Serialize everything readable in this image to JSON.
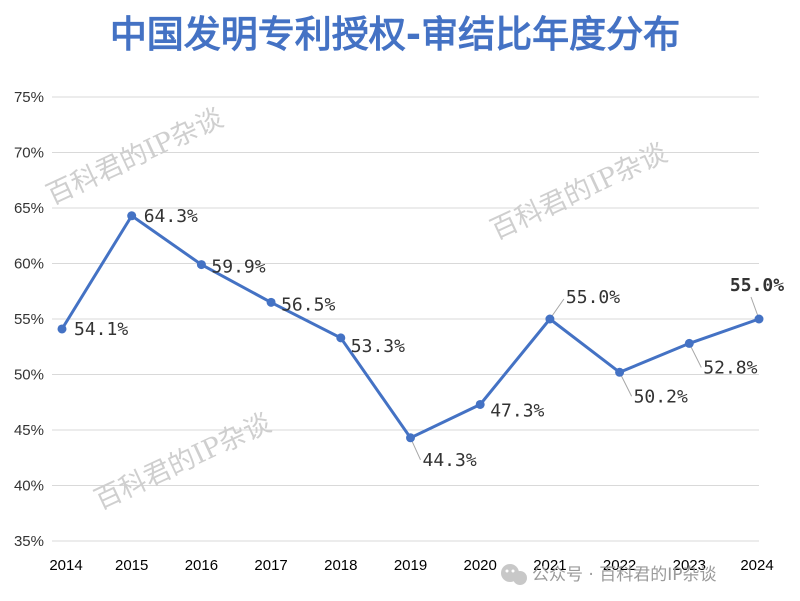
{
  "chart_data": {
    "type": "line",
    "title": "中国发明专利授权-审结比年度分布",
    "categories": [
      "2014",
      "2015",
      "2016",
      "2017",
      "2018",
      "2019",
      "2020",
      "2021",
      "2022",
      "2023",
      "2024"
    ],
    "values": [
      54.1,
      64.3,
      59.9,
      56.5,
      53.3,
      44.3,
      47.3,
      55.0,
      50.2,
      52.8,
      55.0
    ],
    "data_labels": [
      "54.1%",
      "64.3%",
      "59.9%",
      "56.5%",
      "53.3%",
      "44.3%",
      "47.3%",
      "55.0%",
      "50.2%",
      "52.8%",
      "55.0%"
    ],
    "yticks": [
      "35%",
      "40%",
      "45%",
      "50%",
      "55%",
      "60%",
      "65%",
      "70%",
      "75%"
    ],
    "ylim": [
      35,
      75
    ],
    "grid": true,
    "line_color": "#4472C4",
    "title_color": "#4472C4",
    "highlight_color": "#E00000",
    "highlight_index": 10
  },
  "watermarks": [
    "百科君的IP杂谈",
    "百科君的IP杂谈",
    "百科君的IP杂谈"
  ],
  "footer": {
    "icon": "wechat-icon",
    "text": "公众号 · 百科君的IP杂谈"
  }
}
